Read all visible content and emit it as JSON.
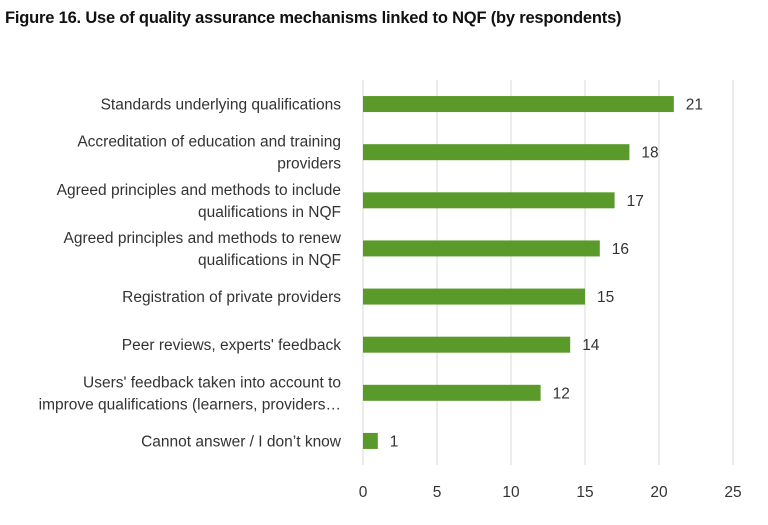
{
  "chart_data": {
    "type": "bar",
    "orientation": "horizontal",
    "title": "Figure 16. Use of quality assurance mechanisms linked to NQF (by respondents)",
    "categories": [
      [
        "Standards underlying qualifications"
      ],
      [
        "Accreditation of education and training",
        "providers"
      ],
      [
        "Agreed principles and methods to include",
        "qualifications in NQF"
      ],
      [
        "Agreed principles and methods to renew",
        "qualifications in NQF"
      ],
      [
        "Registration of private providers"
      ],
      [
        "Peer reviews, experts' feedback"
      ],
      [
        "Users' feedback taken into account to",
        "improve qualifications (learners, providers…"
      ],
      [
        "Cannot answer / I don’t know"
      ]
    ],
    "values": [
      21,
      18,
      17,
      16,
      15,
      14,
      12,
      1
    ],
    "xlim": [
      0,
      25
    ],
    "xticks": [
      0,
      5,
      10,
      15,
      20,
      25
    ],
    "grid": "vertical",
    "bar_color": "#5a9a2a",
    "grid_color": "#d9d9d9"
  }
}
